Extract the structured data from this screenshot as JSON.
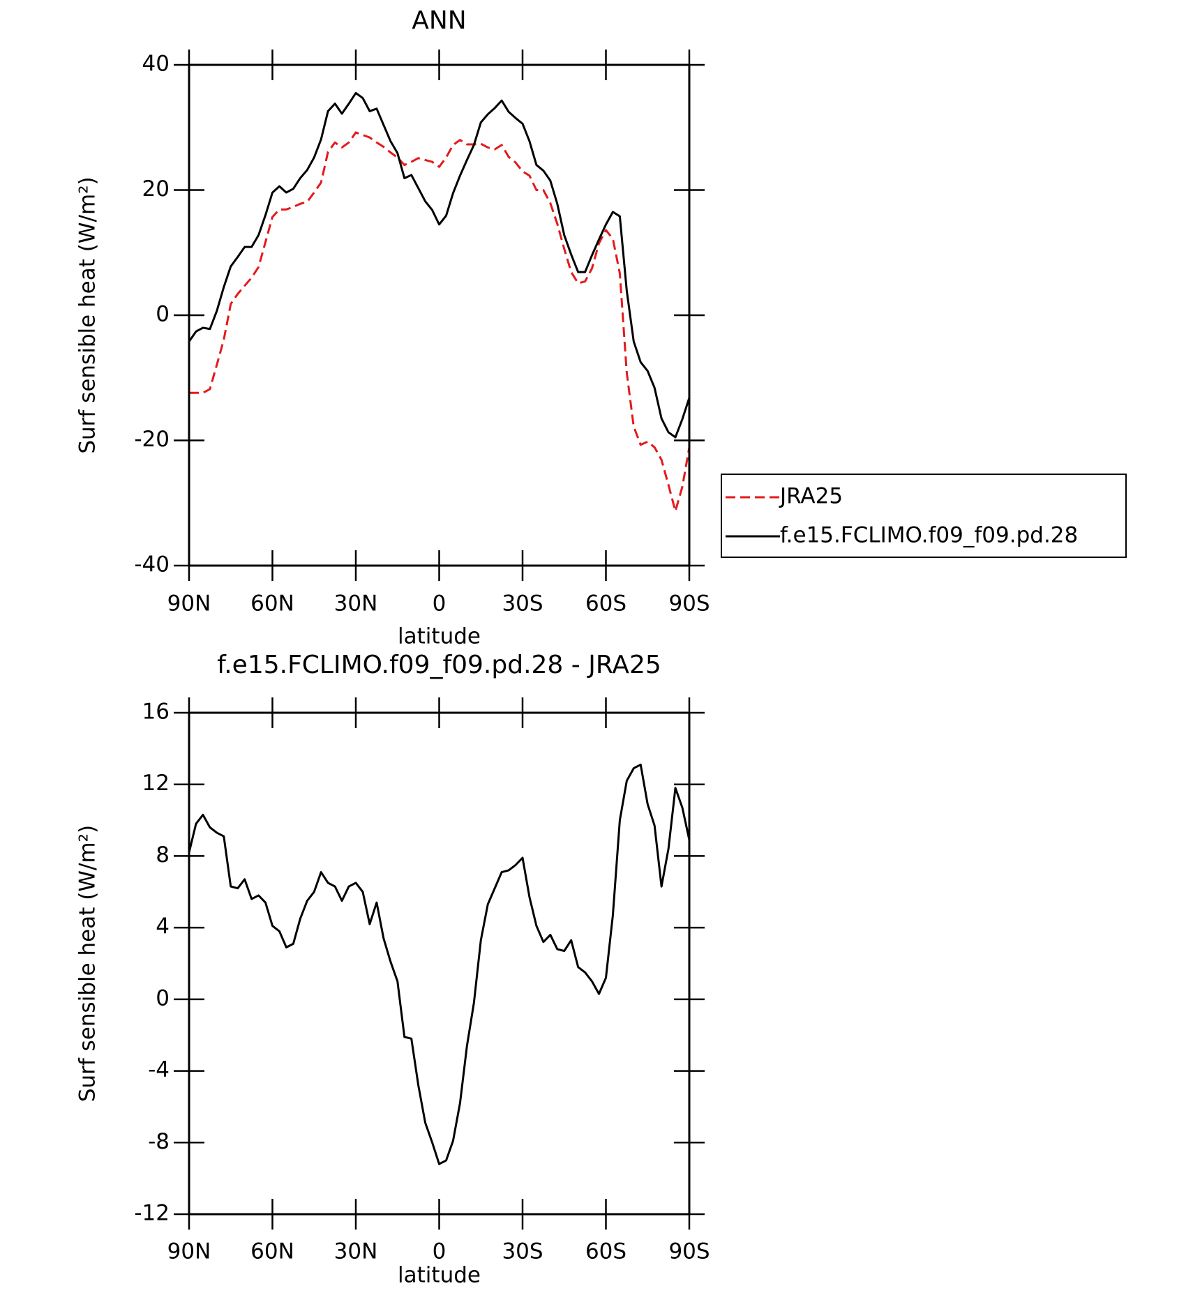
{
  "chart_data": [
    {
      "type": "line",
      "title": "ANN",
      "xlabel": "latitude",
      "ylabel": "Surf sensible heat (W/m²)",
      "x": [
        90,
        87.5,
        85,
        82.5,
        80,
        77.5,
        75,
        72.5,
        70,
        67.5,
        65,
        62.5,
        60,
        57.5,
        55,
        52.5,
        50,
        47.5,
        45,
        42.5,
        40,
        37.5,
        35,
        32.5,
        30,
        27.5,
        25,
        22.5,
        20,
        17.5,
        15,
        12.5,
        10,
        7.5,
        5,
        2.5,
        0,
        -2.5,
        -5,
        -7.5,
        -10,
        -12.5,
        -15,
        -17.5,
        -20,
        -22.5,
        -25,
        -27.5,
        -30,
        -32.5,
        -35,
        -37.5,
        -40,
        -42.5,
        -45,
        -47.5,
        -50,
        -52.5,
        -55,
        -57.5,
        -60,
        -62.5,
        -65,
        -67.5,
        -70,
        -72.5,
        -75,
        -77.5,
        -80,
        -82.5,
        -85,
        -87.5,
        -90
      ],
      "series": [
        {
          "name": "JRA25",
          "color": "#e41a1c",
          "dashed": true,
          "values": [
            -12.4,
            -12.4,
            -12.4,
            -11.8,
            -7.9,
            -3.9,
            1.8,
            3.4,
            4.7,
            6,
            7.7,
            11.7,
            15.7,
            16.9,
            16.9,
            17.3,
            17.8,
            18.1,
            19.6,
            21.2,
            26.1,
            27.6,
            26.8,
            27.6,
            29.2,
            28.8,
            28.4,
            27.6,
            26.9,
            26,
            25.2,
            24,
            24.5,
            25.1,
            24.8,
            24.5,
            23.7,
            25.2,
            27.2,
            28,
            27.3,
            27.3,
            27.4,
            26.8,
            26.5,
            27.2,
            25.3,
            24.4,
            23,
            22.3,
            20,
            20,
            17.9,
            14.6,
            10.6,
            6.9,
            5.1,
            5.4,
            7.5,
            11.5,
            13.6,
            12.2,
            6.7,
            -9.2,
            -17.8,
            -20.7,
            -20.2,
            -21.1,
            -23.1,
            -27.1,
            -31.3,
            -27.4,
            -21.1
          ]
        },
        {
          "name": "f.e15.FCLIMO.f09_f09.pd.28",
          "color": "#000000",
          "dashed": false,
          "values": [
            -4.2,
            -2.6,
            -2,
            -2.2,
            0.7,
            4.5,
            7.8,
            9.3,
            10.9,
            10.9,
            12.8,
            16,
            19.6,
            20.6,
            19.6,
            20.2,
            21.9,
            23.2,
            25.2,
            28.1,
            32.6,
            33.8,
            32.2,
            33.8,
            35.5,
            34.7,
            32.6,
            33,
            30.4,
            27.8,
            25.9,
            21.9,
            22.4,
            20.3,
            18.2,
            16.8,
            14.5,
            15.9,
            19.5,
            22.3,
            24.8,
            27.2,
            30.8,
            32.1,
            33.1,
            34.3,
            32.5,
            31.5,
            30.6,
            27.8,
            24,
            23.1,
            21.5,
            17.8,
            12.8,
            9.7,
            6.9,
            6.9,
            9.6,
            12.1,
            14.5,
            16.5,
            15.8,
            3.9,
            -4.2,
            -7.5,
            -8.9,
            -11.6,
            -16.5,
            -18.7,
            -19.5,
            -16.6,
            -13.2
          ]
        }
      ],
      "xlim": [
        90,
        -90
      ],
      "xticks": [
        {
          "value": 90,
          "label": "90N"
        },
        {
          "value": 60,
          "label": "60N"
        },
        {
          "value": 30,
          "label": "30N"
        },
        0,
        {
          "value": -30,
          "label": "30S"
        },
        {
          "value": -60,
          "label": "60S"
        },
        {
          "value": -90,
          "label": "90S"
        }
      ],
      "ylim": [
        -40,
        40
      ],
      "yticks": [
        -40,
        -20,
        0,
        20,
        40
      ],
      "legend": "right"
    },
    {
      "type": "line",
      "title": "f.e15.FCLIMO.f09_f09.pd.28 - JRA25",
      "xlabel": "latitude",
      "ylabel": "Surf sensible heat (W/m²)",
      "x": [
        90,
        87.5,
        85,
        82.5,
        80,
        77.5,
        75,
        72.5,
        70,
        67.5,
        65,
        62.5,
        60,
        57.5,
        55,
        52.5,
        50,
        47.5,
        45,
        42.5,
        40,
        37.5,
        35,
        32.5,
        30,
        27.5,
        25,
        22.5,
        20,
        17.5,
        15,
        12.5,
        10,
        7.5,
        5,
        2.5,
        0,
        -2.5,
        -5,
        -7.5,
        -10,
        -12.5,
        -15,
        -17.5,
        -20,
        -22.5,
        -25,
        -27.5,
        -30,
        -32.5,
        -35,
        -37.5,
        -40,
        -42.5,
        -45,
        -47.5,
        -50,
        -52.5,
        -55,
        -57.5,
        -60,
        -62.5,
        -65,
        -67.5,
        -70,
        -72.5,
        -75,
        -77.5,
        -80,
        -82.5,
        -85,
        -87.5,
        -90
      ],
      "color": "#000000",
      "values": [
        8.2,
        9.8,
        10.3,
        9.6,
        9.3,
        9.1,
        6.3,
        6.2,
        6.7,
        5.6,
        5.8,
        5.4,
        4.1,
        3.8,
        2.9,
        3.1,
        4.5,
        5.5,
        6,
        7.1,
        6.5,
        6.3,
        5.5,
        6.3,
        6.5,
        6,
        4.2,
        5.4,
        3.4,
        2.1,
        1,
        -2.1,
        -2.2,
        -4.8,
        -6.9,
        -8,
        -9.2,
        -9,
        -7.9,
        -5.8,
        -2.6,
        -0.2,
        3.3,
        5.3,
        6.2,
        7.1,
        7.2,
        7.5,
        7.9,
        5.7,
        4.1,
        3.2,
        3.6,
        2.8,
        2.7,
        3.3,
        1.8,
        1.5,
        1,
        0.3,
        1.2,
        4.7,
        10,
        12.2,
        12.9,
        13.1,
        10.9,
        9.7,
        6.3,
        8.4,
        11.8,
        10.7,
        8.9
      ],
      "xlim": [
        90,
        -90
      ],
      "xticks": [
        {
          "value": 90,
          "label": "90N"
        },
        {
          "value": 60,
          "label": "60N"
        },
        {
          "value": 30,
          "label": "30N"
        },
        0,
        {
          "value": -30,
          "label": "30S"
        },
        {
          "value": -60,
          "label": "60S"
        },
        {
          "value": -90,
          "label": "90S"
        }
      ],
      "ylim": [
        -12,
        16
      ],
      "yticks": [
        -12,
        -8,
        -4,
        0,
        4,
        8,
        12,
        16
      ]
    }
  ]
}
